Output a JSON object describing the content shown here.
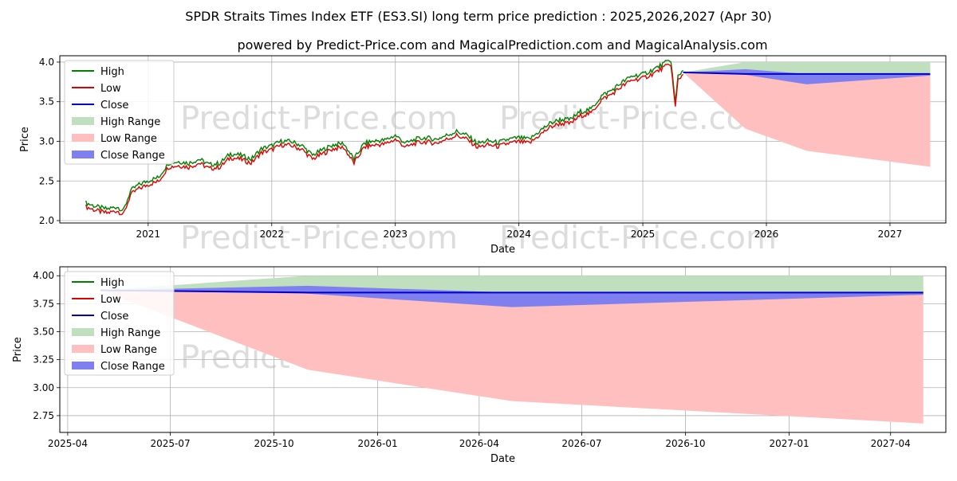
{
  "title": "SPDR Straits Times Index ETF (ES3.SI) long term price prediction : 2025,2026,2027 (Apr 30)",
  "subtitle": "powered by Predict-Price.com and MagicalPrediction.com and MagicalAnalysis.com",
  "watermark": "Predict-Price.com",
  "colors": {
    "high": "#008000",
    "low": "#e00000",
    "close": "#0000cc",
    "high_range": "#bfdfbf",
    "low_range": "#ffbfbf",
    "close_range": "#7f7ff0",
    "grid": "#b0b0b0",
    "watermark": "#dcdcdc"
  },
  "chart_data": [
    {
      "type": "line",
      "xlabel": "Date",
      "ylabel": "Price",
      "xlim": [
        "2020-04-15",
        "2027-06-15"
      ],
      "ylim": [
        1.97,
        4.08
      ],
      "x_ticks": [
        "2021",
        "2022",
        "2023",
        "2024",
        "2025",
        "2026",
        "2027"
      ],
      "y_ticks": [
        "2.0",
        "2.5",
        "3.0",
        "3.5",
        "4.0"
      ],
      "grid": true,
      "legend": "upper-left",
      "legend_entries": [
        "High",
        "Low",
        "Close",
        "High Range",
        "Low Range",
        "Close Range"
      ],
      "history": {
        "dates": [
          "2020-07-01",
          "2020-08-01",
          "2020-09-01",
          "2020-10-01",
          "2020-10-20",
          "2020-11-10",
          "2020-12-01",
          "2021-01-01",
          "2021-02-01",
          "2021-03-01",
          "2021-04-01",
          "2021-05-01",
          "2021-06-01",
          "2021-07-01",
          "2021-08-01",
          "2021-09-01",
          "2021-10-01",
          "2021-11-01",
          "2021-12-01",
          "2022-01-01",
          "2022-02-01",
          "2022-03-01",
          "2022-04-01",
          "2022-05-01",
          "2022-06-01",
          "2022-07-01",
          "2022-08-01",
          "2022-09-01",
          "2022-10-01",
          "2022-11-01",
          "2022-12-01",
          "2023-01-01",
          "2023-02-01",
          "2023-03-01",
          "2023-04-01",
          "2023-05-01",
          "2023-06-01",
          "2023-07-01",
          "2023-08-01",
          "2023-09-01",
          "2023-10-01",
          "2023-11-01",
          "2023-12-01",
          "2024-01-01",
          "2024-02-01",
          "2024-03-01",
          "2024-04-01",
          "2024-05-01",
          "2024-06-01",
          "2024-07-01",
          "2024-08-01",
          "2024-09-01",
          "2024-10-01",
          "2024-11-01",
          "2024-12-01",
          "2025-01-01",
          "2025-02-01",
          "2025-03-01",
          "2025-03-25",
          "2025-04-07",
          "2025-04-15",
          "2025-04-30"
        ],
        "close": [
          2.2,
          2.15,
          2.12,
          2.15,
          2.1,
          2.35,
          2.42,
          2.48,
          2.52,
          2.7,
          2.72,
          2.7,
          2.75,
          2.68,
          2.7,
          2.82,
          2.8,
          2.75,
          2.88,
          2.92,
          2.98,
          2.97,
          2.92,
          2.8,
          2.87,
          2.93,
          2.95,
          2.75,
          2.95,
          2.98,
          2.99,
          3.05,
          2.95,
          3.0,
          3.02,
          3.0,
          3.05,
          3.1,
          3.05,
          2.95,
          2.98,
          2.96,
          3.0,
          3.02,
          3.0,
          3.1,
          3.2,
          3.25,
          3.25,
          3.35,
          3.38,
          3.55,
          3.62,
          3.72,
          3.8,
          3.82,
          3.88,
          3.95,
          4.0,
          3.45,
          3.8,
          3.87
        ],
        "spread": 0.05
      },
      "forecast": {
        "dates": [
          "2025-04-30",
          "2025-10-31",
          "2026-04-30",
          "2027-04-30"
        ],
        "close": [
          3.87,
          3.85,
          3.85,
          3.85
        ],
        "high_range": [
          [
            3.87,
            3.87
          ],
          [
            3.84,
            4.0
          ],
          [
            3.84,
            4.0
          ],
          [
            3.85,
            4.0
          ]
        ],
        "low_range": [
          [
            3.87,
            3.87
          ],
          [
            3.16,
            3.85
          ],
          [
            2.88,
            3.85
          ],
          [
            2.68,
            3.85
          ]
        ],
        "close_range": [
          [
            3.87,
            3.87
          ],
          [
            3.84,
            3.91
          ],
          [
            3.72,
            3.85
          ],
          [
            3.83,
            3.85
          ]
        ]
      }
    },
    {
      "type": "line",
      "xlabel": "Date",
      "ylabel": "Price",
      "xlim": [
        "2025-03-25",
        "2027-05-20"
      ],
      "ylim": [
        2.6,
        4.08
      ],
      "x_ticks": [
        "2025-04",
        "2025-07",
        "2025-10",
        "2026-01",
        "2026-04",
        "2026-07",
        "2026-10",
        "2027-01",
        "2027-04"
      ],
      "y_ticks": [
        "2.75",
        "3.00",
        "3.25",
        "3.50",
        "3.75",
        "4.00"
      ],
      "grid": true,
      "legend": "upper-left",
      "legend_entries": [
        "High",
        "Low",
        "Close",
        "High Range",
        "Low Range",
        "Close Range"
      ],
      "forecast": {
        "dates": [
          "2025-04-30",
          "2025-10-31",
          "2026-04-30",
          "2027-04-30"
        ],
        "close": [
          3.87,
          3.85,
          3.85,
          3.85
        ],
        "high_range": [
          [
            3.87,
            3.87
          ],
          [
            3.84,
            4.0
          ],
          [
            3.84,
            4.0
          ],
          [
            3.85,
            4.0
          ]
        ],
        "low_range": [
          [
            3.87,
            3.87
          ],
          [
            3.16,
            3.85
          ],
          [
            2.88,
            3.85
          ],
          [
            2.68,
            3.85
          ]
        ],
        "close_range": [
          [
            3.87,
            3.87
          ],
          [
            3.84,
            3.91
          ],
          [
            3.72,
            3.85
          ],
          [
            3.83,
            3.85
          ]
        ]
      }
    }
  ]
}
